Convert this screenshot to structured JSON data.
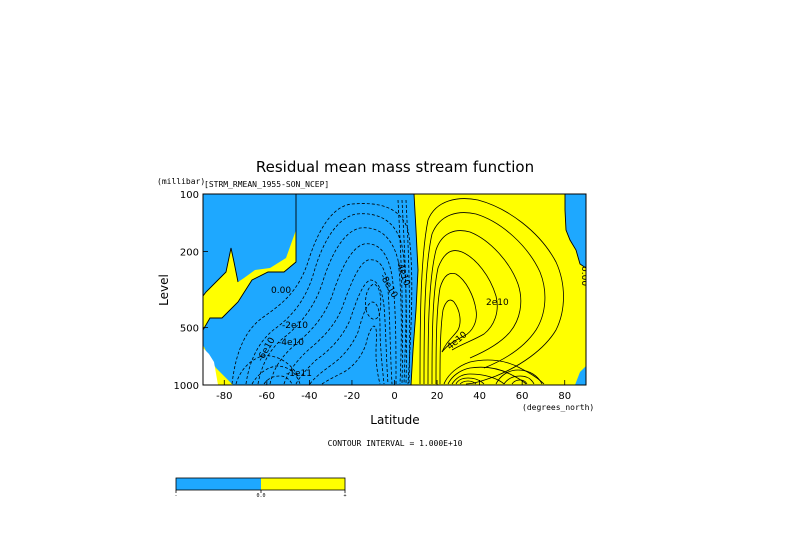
{
  "chart_data": {
    "type": "heatmap",
    "title": "Residual mean mass stream function",
    "subtitle": "[STRM_RMEAN_1955-SON_NCEP]",
    "ylabel": "Level",
    "yunit": "(millibar)",
    "xlabel": "Latitude",
    "xunit": "(degrees_north)",
    "xlim": [
      -90,
      90
    ],
    "ylim": [
      1000,
      100
    ],
    "y_scale": "log",
    "x_ticks": [
      -80,
      -60,
      -40,
      -20,
      0,
      20,
      40,
      60,
      80
    ],
    "y_ticks": [
      100,
      200,
      500,
      1000
    ],
    "contour_interval_text": "CONTOUR INTERVAL = 1.000E+10",
    "contour_labels": [
      "0.00",
      "-2e10",
      "-4e10",
      "-6e10",
      "-1e11",
      "-8e10",
      "-4e10",
      "2e10",
      "4e10",
      "0.00"
    ],
    "fill_colors": {
      "negative": "#1ea8ff",
      "positive": "#ffff00"
    },
    "colorbar": {
      "levels": [
        "-",
        "0.0",
        "+"
      ],
      "colors": [
        "#1ea8ff",
        "#ffff00"
      ]
    },
    "features": [
      {
        "sign": "negative",
        "center_lat": -10,
        "center_level": 350,
        "min": -120000000000.0
      },
      {
        "sign": "positive",
        "center_lat": 22,
        "center_level": 400,
        "max": 60000000000.0
      },
      {
        "sign": "positive",
        "center_lat": 30,
        "center_level": 950,
        "max": 100000000000.0
      }
    ]
  }
}
